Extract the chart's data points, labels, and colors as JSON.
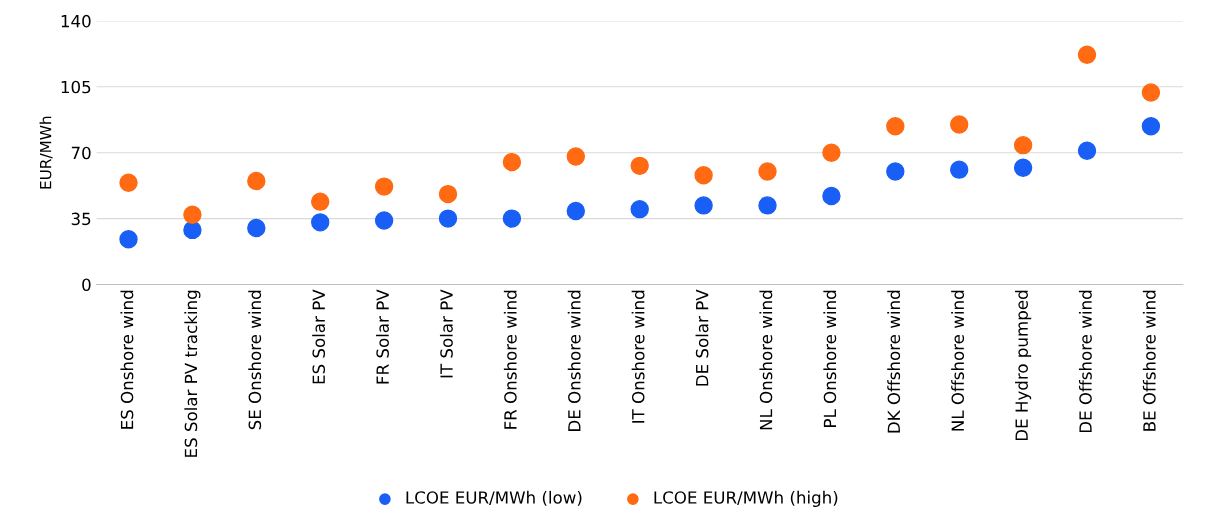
{
  "chart_data": {
    "type": "scatter",
    "ylabel": "EUR/MWh",
    "categories": [
      "ES Onshore wind",
      "ES Solar PV tracking",
      "SE Onshore wind",
      "ES Solar PV",
      "FR Solar PV",
      "IT Solar PV",
      "FR Onshore wind",
      "DE Onshore wind",
      "IT Onshore wind",
      "DE Solar PV",
      "NL Onshore wind",
      "PL Onshore wind",
      "DK Offshore wind",
      "NL Offshore wind",
      "DE Hydro pumped",
      "DE Offshore wind",
      "BE Offshore wind"
    ],
    "series": [
      {
        "name": "LCOE EUR/MWh (low)",
        "color": "#1a5ff5",
        "values": [
          24,
          29,
          30,
          33,
          34,
          35,
          35,
          39,
          40,
          42,
          42,
          47,
          60,
          61,
          62,
          71,
          84
        ]
      },
      {
        "name": "LCOE EUR/MWh (high)",
        "color": "#ff6a13",
        "values": [
          54,
          37,
          55,
          44,
          52,
          48,
          65,
          68,
          63,
          58,
          60,
          70,
          84,
          85,
          74,
          122,
          102
        ]
      }
    ],
    "ylim": [
      0,
      140
    ],
    "yticks": [
      0,
      35,
      70,
      105,
      140
    ],
    "grid": "y",
    "legend": "bottom",
    "marker": "circle"
  }
}
